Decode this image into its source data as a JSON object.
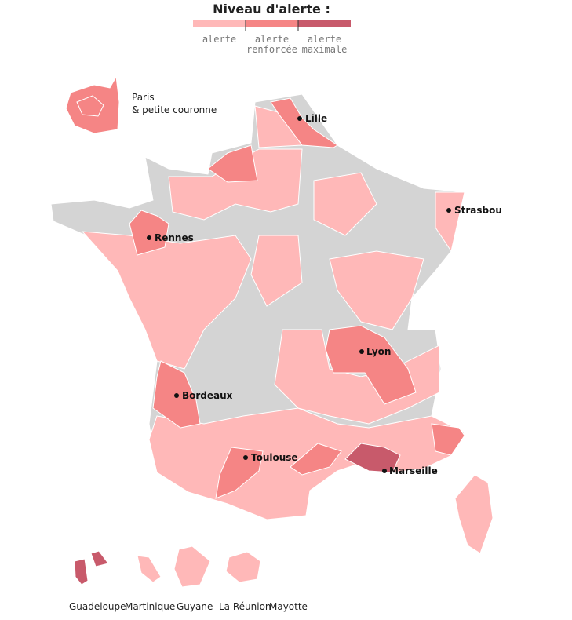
{
  "legend": {
    "title": "Niveau d'alerte :",
    "levels": [
      {
        "label": [
          "alerte"
        ],
        "color": "#ffb8b8"
      },
      {
        "label": [
          "alerte",
          "renforcée"
        ],
        "color": "#f58585"
      },
      {
        "label": [
          "alerte",
          "maximale"
        ],
        "color": "#c85a6b"
      }
    ]
  },
  "no_alert_color": "#d4d4d4",
  "paris": [
    "Paris",
    "& petite couronne"
  ],
  "cities": [
    "Lille",
    "Strasbou",
    "Rennes",
    "Lyon",
    "Bordeaux",
    "Toulouse",
    "Marseille"
  ],
  "overseas": [
    "Guadeloupe",
    "Martinique",
    "Guyane",
    "La Réunion",
    "Mayotte"
  ]
}
